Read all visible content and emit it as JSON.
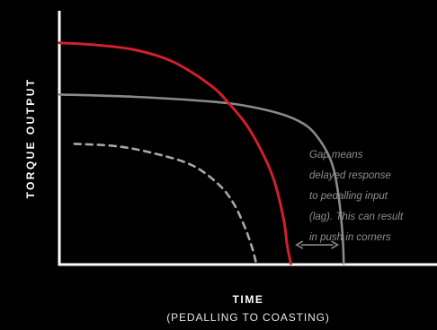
{
  "chart_data": {
    "type": "line",
    "ylabel": "TORQUE OUTPUT",
    "xlabel": "TIME",
    "xlabel_sub": "(PEDALLING TO COASTING)",
    "xlim": [
      0,
      100
    ],
    "ylim": [
      0,
      100
    ],
    "grid": false,
    "series": [
      {
        "key": "red",
        "style": "solid",
        "color": "#d0202c",
        "x": [
          0,
          10,
          20,
          30,
          40,
          45,
          50,
          55,
          57.5,
          59.5,
          60.3,
          61.3
        ],
        "y": [
          94,
          93,
          91,
          86,
          76,
          68,
          58,
          43,
          32,
          18,
          8,
          0
        ]
      },
      {
        "key": "grey",
        "style": "solid",
        "color": "#8a8a8a",
        "x": [
          0,
          20,
          40,
          50,
          60,
          66,
          70,
          72.5,
          74,
          75,
          75.3
        ],
        "y": [
          72,
          71,
          69,
          67,
          63,
          58,
          50,
          41,
          28,
          12,
          0
        ]
      },
      {
        "key": "dashed",
        "style": "dashed",
        "color": "#a8a8a8",
        "x": [
          4,
          15,
          25,
          35,
          42,
          46,
          49,
          51,
          52
        ],
        "y": [
          51,
          50,
          47,
          42,
          34,
          26,
          16,
          7,
          1
        ]
      }
    ],
    "annotations": [
      {
        "type": "double-arrow",
        "y": 8,
        "x_from": 62.8,
        "x_to": 73.7,
        "color": "#8a8a8a"
      },
      {
        "type": "text",
        "lines": [
          "Gap means",
          "delayed response",
          "to pedalling input",
          "(lag). This can result",
          "in push in corners"
        ],
        "color": "#8f8f8f"
      }
    ]
  }
}
